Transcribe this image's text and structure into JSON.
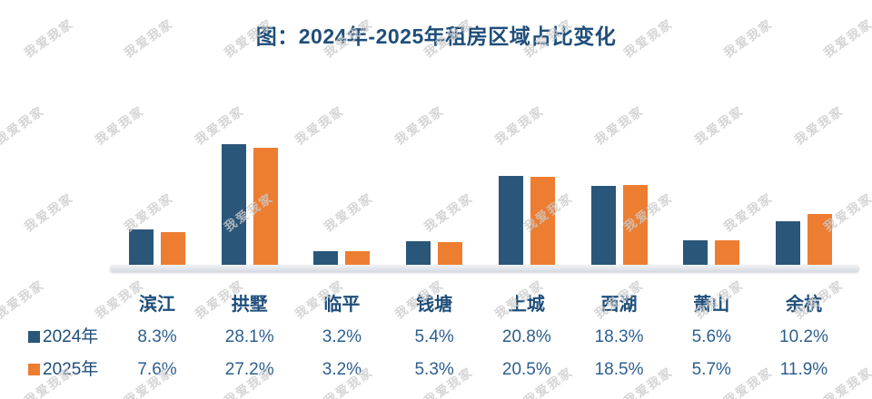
{
  "watermark": {
    "text": "我爱我家",
    "color": "#cbcbcb"
  },
  "title": "图：2024年-2025年租房区域占比变化",
  "chart_data": {
    "type": "bar",
    "title": "图：2024年-2025年租房区域占比变化",
    "categories": [
      "滨江",
      "拱墅",
      "临平",
      "钱塘",
      "上城",
      "西湖",
      "萧山",
      "余杭"
    ],
    "series": [
      {
        "name": "2024年",
        "color": "#2a5679",
        "values": [
          8.3,
          28.1,
          3.2,
          5.4,
          20.8,
          18.3,
          5.6,
          10.2
        ]
      },
      {
        "name": "2025年",
        "color": "#ed7d31",
        "values": [
          7.6,
          27.2,
          3.2,
          5.3,
          20.5,
          18.5,
          5.7,
          11.9
        ]
      }
    ],
    "value_unit": "%",
    "value_labels": {
      "2024年": [
        "8.3%",
        "28.1%",
        "3.2%",
        "5.4%",
        "20.8%",
        "18.3%",
        "5.6%",
        "10.2%"
      ],
      "2025年": [
        "7.6%",
        "27.2%",
        "3.2%",
        "5.3%",
        "20.5%",
        "18.5%",
        "5.7%",
        "11.9%"
      ]
    },
    "ylim": [
      0,
      30
    ],
    "grid": false,
    "axis_line_color": "#d5dae1",
    "legend_position": "bottom-table-left",
    "title_color": "#1f4e79",
    "header_text_color": "#1f4e79",
    "value_text_color": "#2d5f8f"
  }
}
